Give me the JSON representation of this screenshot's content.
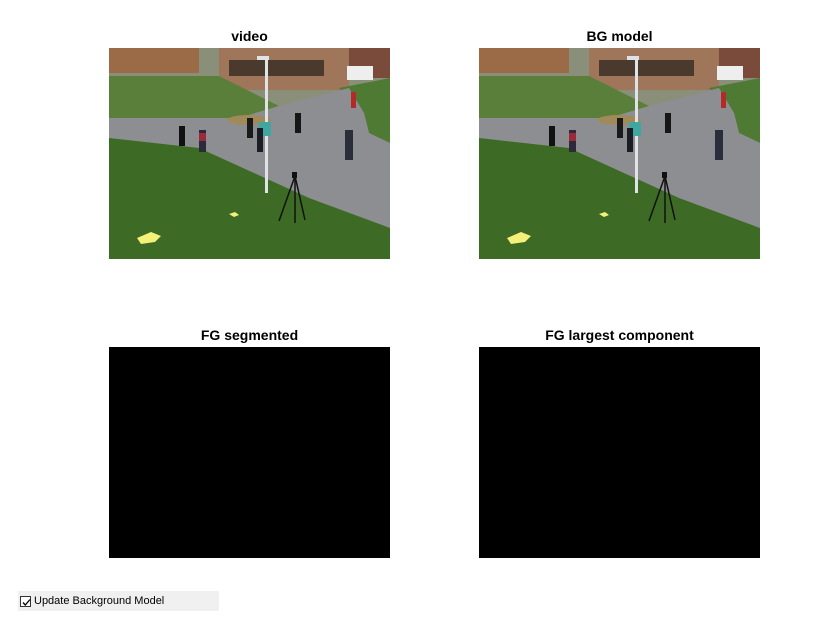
{
  "panels": [
    {
      "title": "video",
      "content": "camera-frame"
    },
    {
      "title": "BG model",
      "content": "camera-frame"
    },
    {
      "title": "FG segmented",
      "content": "black-mask"
    },
    {
      "title": "FG largest component",
      "content": "black-mask"
    }
  ],
  "controls": {
    "update_bg_label": "Update Background Model",
    "update_bg_checked": true
  },
  "colors": {
    "mask": "#000000",
    "control_bg": "#f0f0f0"
  }
}
